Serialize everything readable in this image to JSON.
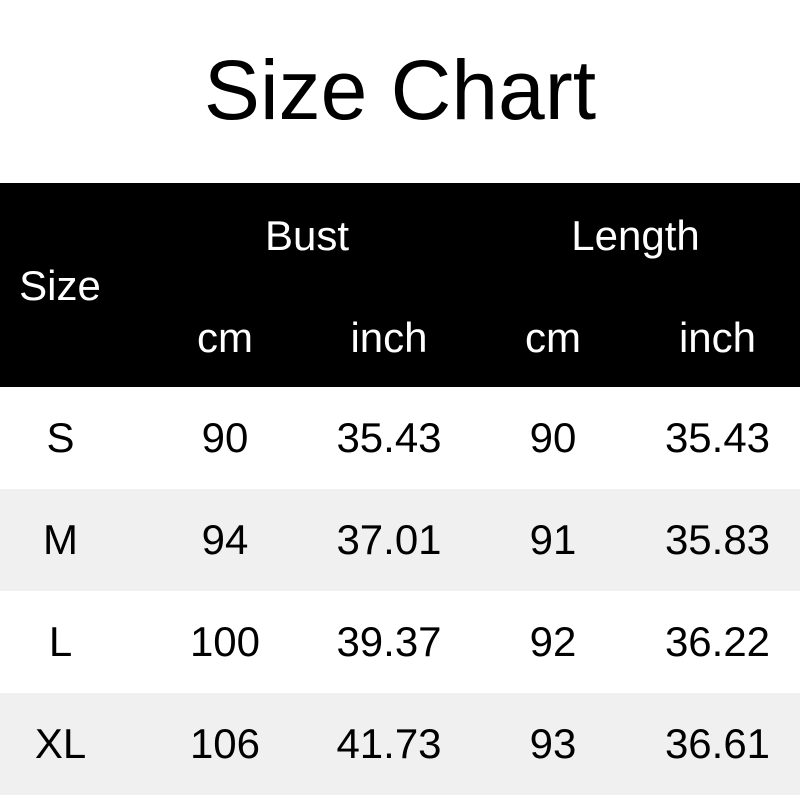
{
  "title": "Size Chart",
  "header": {
    "size": "Size",
    "bust": "Bust",
    "length": "Length",
    "units": [
      "cm",
      "inch",
      "cm",
      "inch"
    ]
  },
  "rows": [
    {
      "size": "S",
      "bust_cm": "90",
      "bust_inch": "35.43",
      "length_cm": "90",
      "length_inch": "35.43"
    },
    {
      "size": "M",
      "bust_cm": "94",
      "bust_inch": "37.01",
      "length_cm": "91",
      "length_inch": "35.83"
    },
    {
      "size": "L",
      "bust_cm": "100",
      "bust_inch": "39.37",
      "length_cm": "92",
      "length_inch": "36.22"
    },
    {
      "size": "XL",
      "bust_cm": "106",
      "bust_inch": "41.73",
      "length_cm": "93",
      "length_inch": "36.61"
    }
  ],
  "colors": {
    "header_bg": "#000000",
    "header_text": "#ffffff",
    "alt_row_bg": "#f0f0f0"
  }
}
